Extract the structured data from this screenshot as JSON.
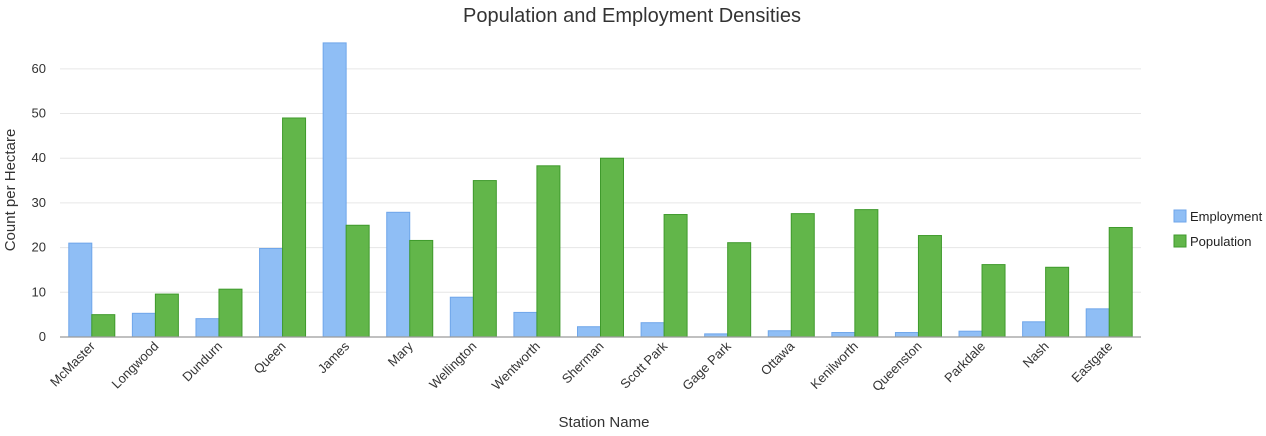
{
  "chart_data": {
    "type": "bar",
    "title": "Population and Employment Densities",
    "xlabel": "Station Name",
    "ylabel": "Count per Hectare",
    "ylim": [
      0,
      66
    ],
    "yticks": [
      0,
      10,
      20,
      30,
      40,
      50,
      60
    ],
    "grid": true,
    "legend_position": "right",
    "categories": [
      "McMaster",
      "Longwood",
      "Dundurn",
      "Queen",
      "James",
      "Mary",
      "Wellington",
      "Wentworth",
      "Sherman",
      "Scott Park",
      "Gage Park",
      "Ottawa",
      "Kenilworth",
      "Queenston",
      "Parkdale",
      "Nash",
      "Eastgate"
    ],
    "series": [
      {
        "name": "Employment",
        "color": "#8fbef5",
        "stroke": "#6fa6ea",
        "values": [
          21.0,
          5.3,
          4.1,
          19.8,
          65.8,
          27.9,
          8.9,
          5.5,
          2.3,
          3.2,
          0.7,
          1.4,
          1.0,
          1.0,
          1.3,
          3.4,
          6.3
        ]
      },
      {
        "name": "Population",
        "color": "#62b64a",
        "stroke": "#3f9a2c",
        "values": [
          5.0,
          9.6,
          10.7,
          49.0,
          25.0,
          21.6,
          35.0,
          38.3,
          40.0,
          27.4,
          21.1,
          27.6,
          28.5,
          22.7,
          16.2,
          15.6,
          24.5
        ]
      }
    ]
  }
}
